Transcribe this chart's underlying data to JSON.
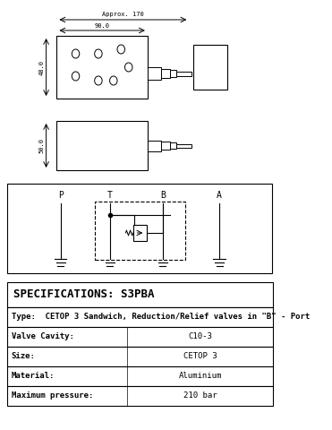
{
  "title": "SPECIFICATIONS: S3PBA",
  "type_label": "Type:  CETOP 3 Sandwich, Reduction/Relief valves in \"B\" - Port",
  "rows": [
    [
      "Valve Cavity:",
      "C10-3"
    ],
    [
      "Size:",
      "CETOP 3"
    ],
    [
      "Material:",
      "Aluminium"
    ],
    [
      "Maximum pressure:",
      "210 bar"
    ]
  ],
  "port_labels": [
    "P",
    "T",
    "B",
    "A"
  ],
  "dim_top": "Approx. 170",
  "dim_90": "90.0",
  "dim_48": "48.0",
  "dim_50": "50.0",
  "bg_color": "#ffffff",
  "line_color": "#000000",
  "gray_color": "#888888"
}
